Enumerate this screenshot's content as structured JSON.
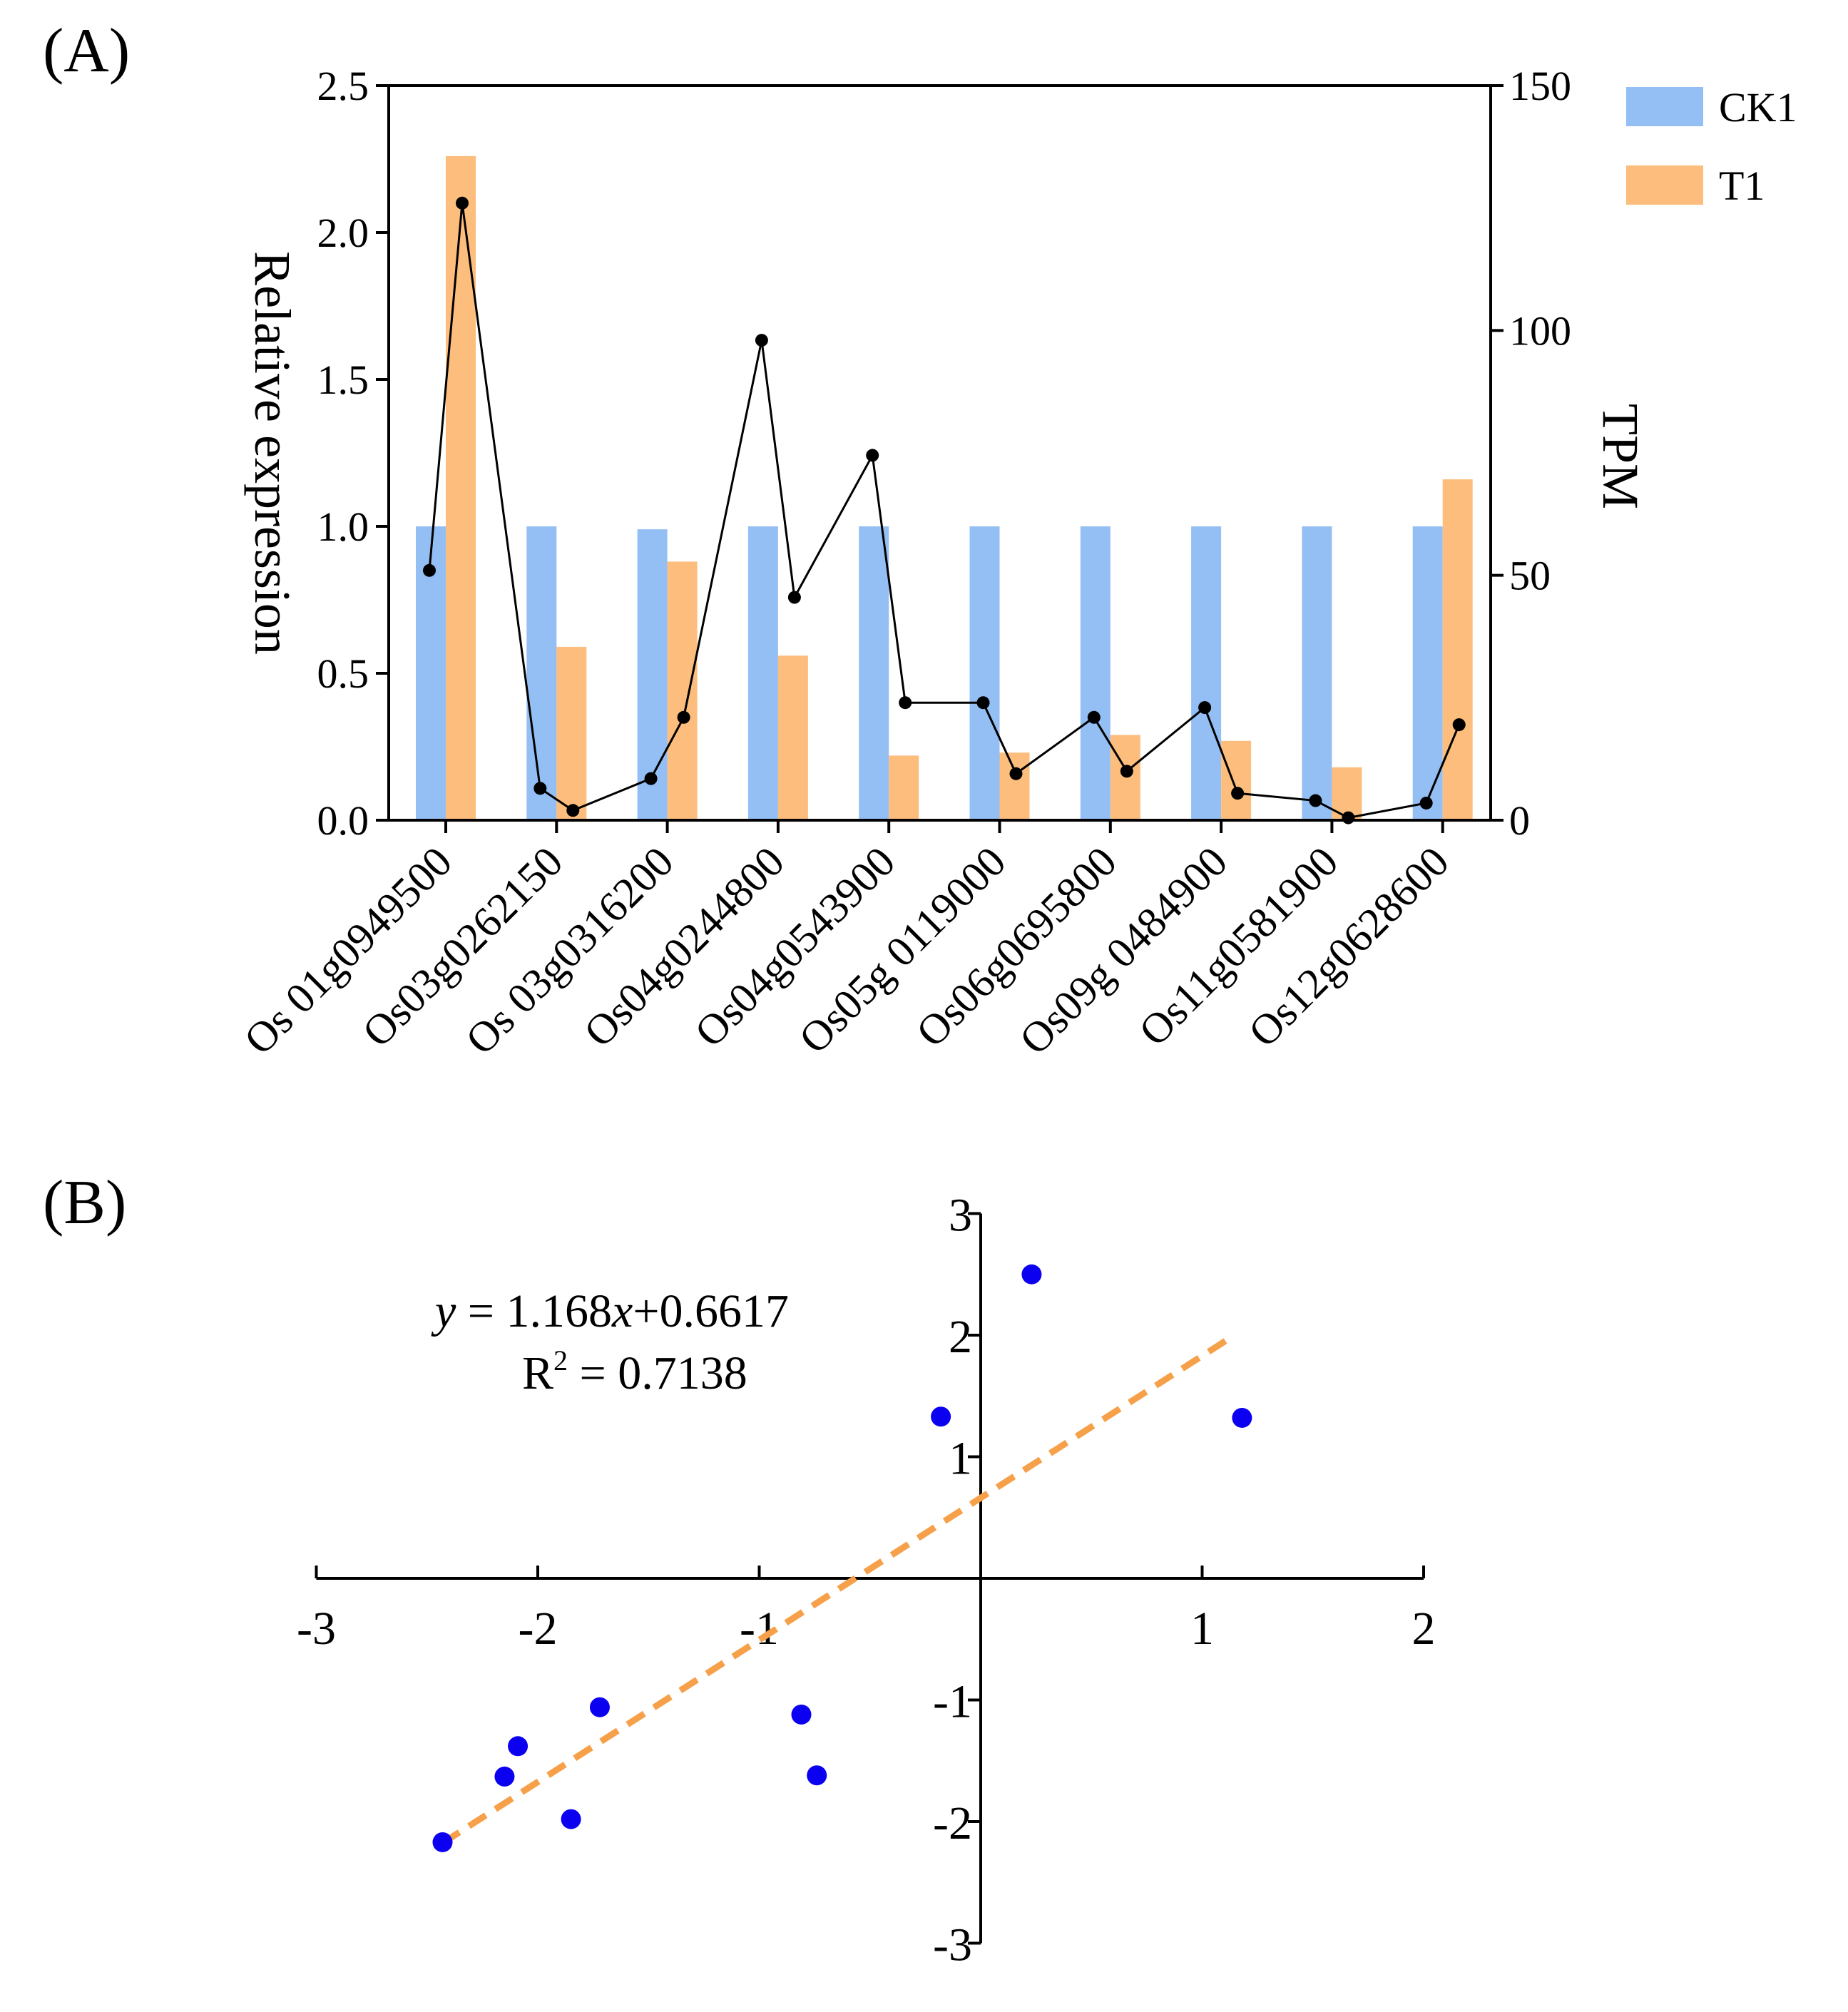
{
  "panel_a": {
    "label": "(A)"
  },
  "panel_b": {
    "label": "(B)",
    "equation": {
      "y_var": "y",
      "eq_part1": " = 1.168",
      "x_var": "x",
      "eq_part2": "+0.6617",
      "r_base": "R",
      "r_sup": "2",
      "r_value": " = 0.7138"
    }
  },
  "colors": {
    "ck1": "#93bff5",
    "t1": "#fdbd7c",
    "tpm_line": "#000000",
    "scatter_point": "#0b00f0",
    "fit_line": "#f6a14a"
  },
  "chart_data": [
    {
      "type": "bar",
      "title": "",
      "xlabel": "",
      "ylabel": "Relative expression",
      "ylim": [
        0,
        2.5
      ],
      "yticks": [
        "0.0",
        "0.5",
        "1.0",
        "1.5",
        "2.0",
        "2.5"
      ],
      "categories": [
        "Os01g0949500",
        "Os03g0262150",
        "Os03g0316200",
        "Os04g0244800",
        "Os04g0543900",
        "Os05g0119000",
        "Os06g0695800",
        "Os09g0484900",
        "Os11g0581900",
        "Os12g0628600"
      ],
      "category_labels": [
        "Os 01g0949500",
        "Os03g0262150",
        "Os 03g0316200",
        "Os04g0244800",
        "Os04g0543900",
        "Os05g 0119000",
        "Os06g0695800",
        "Os09g 0484900",
        "Os11g0581900",
        "Os12g0628600"
      ],
      "legend": [
        "CK1",
        "T1"
      ],
      "legend_position": "top-right",
      "series": [
        {
          "name": "CK1",
          "values": [
            1.0,
            1.0,
            0.99,
            1.0,
            1.0,
            1.0,
            1.0,
            1.0,
            1.0,
            1.0
          ]
        },
        {
          "name": "T1",
          "values": [
            2.26,
            0.59,
            0.88,
            0.56,
            0.22,
            0.23,
            0.29,
            0.27,
            0.18,
            1.16
          ]
        }
      ],
      "secondary_axis": {
        "label": "TPM",
        "ylim": [
          0,
          150
        ],
        "yticks": [
          "0",
          "50",
          "100",
          "150"
        ],
        "line_series": {
          "name": "TPM",
          "values": [
            [
              51,
              126
            ],
            [
              6.5,
              2
            ],
            [
              8.5,
              21
            ],
            [
              98,
              45.5
            ],
            [
              74.5,
              24
            ],
            [
              24,
              9.5
            ],
            [
              21,
              10
            ],
            [
              23,
              5.5
            ],
            [
              4,
              0.5
            ],
            [
              3.5,
              19.5
            ]
          ]
        }
      }
    },
    {
      "type": "scatter",
      "title": "",
      "xlabel": "",
      "ylabel": "",
      "xlim": [
        -3,
        2
      ],
      "ylim": [
        -3,
        3
      ],
      "xticks": [
        "-3",
        "-2",
        "-1",
        "1",
        "2"
      ],
      "yticks": [
        "-3",
        "-2",
        "-1",
        "1",
        "2",
        "3"
      ],
      "points": [
        {
          "x": -2.43,
          "y": -2.17
        },
        {
          "x": -2.15,
          "y": -1.63
        },
        {
          "x": -2.09,
          "y": -1.38
        },
        {
          "x": -1.85,
          "y": -1.98
        },
        {
          "x": -1.72,
          "y": -1.06
        },
        {
          "x": -0.81,
          "y": -1.12
        },
        {
          "x": -0.74,
          "y": -1.62
        },
        {
          "x": -0.18,
          "y": 1.33
        },
        {
          "x": 0.23,
          "y": 2.5
        },
        {
          "x": 1.18,
          "y": 1.32
        }
      ],
      "fit": {
        "slope": 1.168,
        "intercept": 0.6617,
        "r_squared": 0.7138,
        "x_range": [
          -2.43,
          1.13
        ]
      }
    }
  ]
}
